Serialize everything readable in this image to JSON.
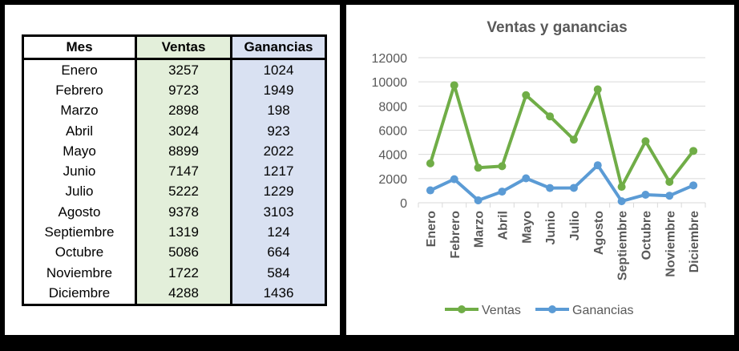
{
  "table": {
    "headers": [
      "Mes",
      "Ventas",
      "Ganancias"
    ],
    "rows": [
      [
        "Enero",
        "3257",
        "1024"
      ],
      [
        "Febrero",
        "9723",
        "1949"
      ],
      [
        "Marzo",
        "2898",
        "198"
      ],
      [
        "Abril",
        "3024",
        "923"
      ],
      [
        "Mayo",
        "8899",
        "2022"
      ],
      [
        "Junio",
        "7147",
        "1217"
      ],
      [
        "Julio",
        "5222",
        "1229"
      ],
      [
        "Agosto",
        "9378",
        "3103"
      ],
      [
        "Septiembre",
        "1319",
        "124"
      ],
      [
        "Octubre",
        "5086",
        "664"
      ],
      [
        "Noviembre",
        "1722",
        "584"
      ],
      [
        "Diciembre",
        "4288",
        "1436"
      ]
    ]
  },
  "chart_data": {
    "type": "line",
    "title": "Ventas y ganancias",
    "categories": [
      "Enero",
      "Febrero",
      "Marzo",
      "Abril",
      "Mayo",
      "Junio",
      "Julio",
      "Agosto",
      "Septiembre",
      "Octubre",
      "Noviembre",
      "Diciembre"
    ],
    "series": [
      {
        "name": "Ventas",
        "color": "#70ad47",
        "values": [
          3257,
          9723,
          2898,
          3024,
          8899,
          7147,
          5222,
          9378,
          1319,
          5086,
          1722,
          4288
        ]
      },
      {
        "name": "Ganancias",
        "color": "#5b9bd5",
        "values": [
          1024,
          1949,
          198,
          923,
          2022,
          1217,
          1229,
          3103,
          124,
          664,
          584,
          1436
        ]
      }
    ],
    "ylim": [
      0,
      12000
    ],
    "yticks": [
      0,
      2000,
      4000,
      6000,
      8000,
      10000,
      12000
    ],
    "grid": true,
    "legend": "bottom"
  }
}
